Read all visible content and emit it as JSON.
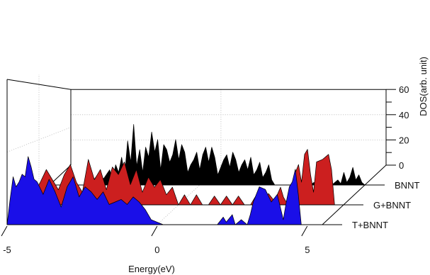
{
  "chart_data": {
    "type": "area",
    "title": "",
    "xlabel": "Energy(eV)",
    "ylabel": "DOS(arb. unit)",
    "xlim": [
      -5,
      5.5
    ],
    "ylim": [
      0,
      60
    ],
    "xticks": [
      -5,
      0,
      5
    ],
    "yticks": [
      0,
      20,
      40,
      60
    ],
    "grid": true,
    "series": [
      {
        "name": "BNNT",
        "color": "#000000",
        "x": [
          -5.0,
          -3.8,
          -3.6,
          -3.4,
          -3.2,
          -3.0,
          -2.9,
          -2.8,
          -2.7,
          -2.6,
          -2.5,
          -2.4,
          -2.3,
          -2.2,
          -2.1,
          -2.0,
          -1.9,
          -1.8,
          -1.7,
          -1.6,
          -1.5,
          -1.4,
          -1.3,
          -1.2,
          -1.1,
          -1.0,
          -0.9,
          -0.8,
          -0.7,
          -0.6,
          -0.5,
          -0.4,
          -0.3,
          -0.2,
          -0.1,
          0.0,
          0.1,
          0.2,
          0.3,
          0.4,
          0.5,
          0.6,
          0.7,
          0.8,
          0.9,
          1.0,
          1.1,
          1.2,
          1.3,
          1.4,
          1.5,
          1.6,
          1.7,
          1.8,
          1.9,
          2.0,
          2.1,
          2.2,
          2.3,
          2.4,
          2.5,
          3.5,
          3.6,
          3.7,
          3.8,
          3.9,
          4.0,
          4.2,
          4.3,
          4.4,
          4.6,
          4.7,
          4.8,
          4.9,
          5.0,
          5.1,
          5.2,
          5.3,
          5.4,
          5.5
        ],
        "values": [
          0,
          0,
          2,
          8,
          5,
          12,
          4,
          16,
          10,
          22,
          8,
          35,
          18,
          48,
          15,
          28,
          10,
          30,
          22,
          42,
          26,
          36,
          12,
          32,
          28,
          18,
          24,
          36,
          20,
          32,
          26,
          10,
          16,
          20,
          26,
          12,
          24,
          30,
          18,
          30,
          22,
          8,
          14,
          20,
          24,
          14,
          26,
          20,
          10,
          16,
          20,
          12,
          22,
          8,
          12,
          18,
          6,
          10,
          16,
          4,
          0,
          0,
          3,
          0,
          2,
          0,
          0,
          0,
          3,
          0,
          4,
          1,
          10,
          2,
          6,
          14,
          4,
          8,
          2,
          0
        ]
      },
      {
        "name": "G+BNNT",
        "color": "#cc1f1f",
        "x": [
          -5.0,
          -4.6,
          -4.4,
          -4.2,
          -4.0,
          -3.8,
          -3.6,
          -3.4,
          -3.2,
          -3.0,
          -2.8,
          -2.6,
          -2.4,
          -2.2,
          -2.0,
          -1.8,
          -1.6,
          -1.4,
          -1.2,
          -1.0,
          -0.8,
          -0.6,
          -0.4,
          -0.2,
          0.0,
          0.2,
          0.4,
          0.6,
          0.8,
          1.0,
          1.2,
          1.4,
          1.6,
          1.8,
          2.0,
          2.2,
          2.4,
          2.6,
          2.8,
          3.0,
          3.2,
          3.4,
          3.5,
          3.6,
          3.7,
          3.8,
          3.9,
          4.0,
          4.1,
          4.2,
          4.3,
          4.4,
          4.5,
          4.6,
          4.8,
          5.0,
          5.1,
          5.2
        ],
        "values": [
          0,
          18,
          28,
          20,
          12,
          24,
          32,
          18,
          10,
          36,
          20,
          28,
          12,
          30,
          24,
          34,
          16,
          28,
          10,
          22,
          14,
          20,
          8,
          14,
          0,
          8,
          0,
          8,
          0,
          0,
          7,
          0,
          7,
          0,
          7,
          0,
          0,
          8,
          0,
          9,
          3,
          14,
          6,
          2,
          10,
          4,
          26,
          32,
          18,
          40,
          44,
          24,
          10,
          34,
          36,
          40,
          28,
          0
        ]
      },
      {
        "name": "T+BNNT",
        "color": "#1a0fe8",
        "x": [
          -5.0,
          -4.9,
          -4.8,
          -4.7,
          -4.6,
          -4.5,
          -4.4,
          -4.3,
          -4.2,
          -4.1,
          -4.0,
          -3.8,
          -3.6,
          -3.4,
          -3.2,
          -3.0,
          -2.8,
          -2.6,
          -2.4,
          -2.2,
          -2.0,
          -1.8,
          -1.6,
          -1.4,
          -1.2,
          -1.0,
          -0.8,
          -0.6,
          -0.4,
          -0.2,
          0.0,
          0.2,
          0.4,
          0.6,
          0.8,
          1.0,
          2.0,
          2.2,
          2.3,
          2.5,
          2.6,
          2.8,
          3.0,
          3.1,
          3.2,
          3.4,
          3.6,
          3.8,
          4.0,
          4.1,
          4.2,
          4.3,
          4.4,
          4.5,
          4.6,
          4.7,
          4.8
        ],
        "values": [
          0,
          20,
          38,
          30,
          34,
          40,
          38,
          54,
          46,
          36,
          34,
          24,
          36,
          26,
          14,
          30,
          38,
          22,
          30,
          26,
          20,
          26,
          16,
          18,
          20,
          16,
          22,
          18,
          12,
          4,
          2,
          0,
          0,
          0,
          0,
          0,
          0,
          6,
          2,
          8,
          0,
          4,
          0,
          8,
          18,
          30,
          28,
          18,
          24,
          14,
          4,
          18,
          30,
          34,
          44,
          24,
          0
        ]
      }
    ],
    "annotations": [],
    "legend": "labels at the end of each slice, right side"
  }
}
